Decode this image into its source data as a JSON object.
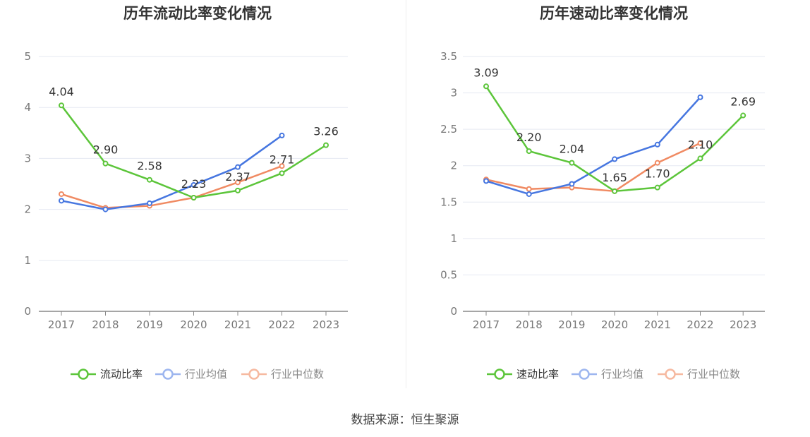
{
  "chart_data": [
    {
      "type": "line",
      "title": "历年流动比率变化情况",
      "categories": [
        "2017",
        "2018",
        "2019",
        "2020",
        "2021",
        "2022",
        "2023"
      ],
      "ylim": [
        0,
        5
      ],
      "yticks": [
        "0",
        "1",
        "2",
        "3",
        "4",
        "5"
      ],
      "ytick_values": [
        0,
        1,
        2,
        3,
        4,
        5
      ],
      "series": [
        {
          "name": "流动比率",
          "color": "#5cc53a",
          "values": [
            4.04,
            2.9,
            2.58,
            2.23,
            2.37,
            2.71,
            3.26
          ],
          "labels": [
            "4.04",
            "2.90",
            "2.58",
            "2.23",
            "2.37",
            "2.71",
            "3.26"
          ]
        },
        {
          "name": "行业均值",
          "color": "#4676e0",
          "values": [
            2.17,
            2.0,
            2.12,
            2.48,
            2.83,
            3.45,
            null
          ]
        },
        {
          "name": "行业中位数",
          "color": "#f08a62",
          "values": [
            2.3,
            2.03,
            2.07,
            2.23,
            2.53,
            2.85,
            null
          ]
        }
      ]
    },
    {
      "type": "line",
      "title": "历年速动比率变化情况",
      "categories": [
        "2017",
        "2018",
        "2019",
        "2020",
        "2021",
        "2022",
        "2023"
      ],
      "ylim": [
        0,
        3.5
      ],
      "yticks": [
        "0",
        "0.5",
        "1",
        "1.5",
        "2",
        "2.5",
        "3",
        "3.5"
      ],
      "ytick_values": [
        0,
        0.5,
        1,
        1.5,
        2,
        2.5,
        3,
        3.5
      ],
      "series": [
        {
          "name": "速动比率",
          "color": "#5cc53a",
          "values": [
            3.09,
            2.2,
            2.04,
            1.65,
            1.7,
            2.1,
            2.69
          ],
          "labels": [
            "3.09",
            "2.20",
            "2.04",
            "1.65",
            "1.70",
            "2.10",
            "2.69"
          ]
        },
        {
          "name": "行业均值",
          "color": "#4676e0",
          "values": [
            1.79,
            1.61,
            1.75,
            2.09,
            2.29,
            2.94,
            null
          ]
        },
        {
          "name": "行业中位数",
          "color": "#f08a62",
          "values": [
            1.81,
            1.68,
            1.7,
            1.65,
            2.04,
            2.31,
            null
          ]
        }
      ]
    }
  ],
  "source_text": "数据来源：恒生聚源"
}
